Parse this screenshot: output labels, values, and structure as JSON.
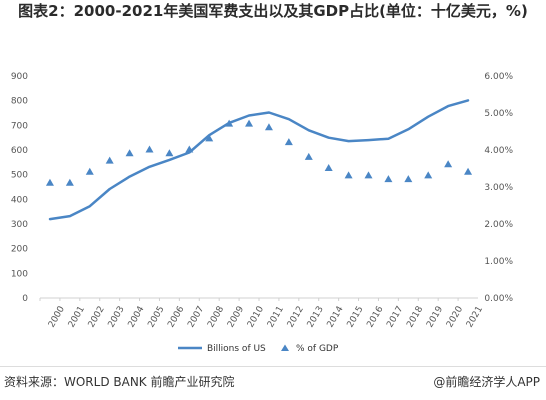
{
  "title": "图表2：2000-2021年美国军费支出以及其GDP占比(单位：十亿美元，%)",
  "source": "资料来源：WORLD BANK 前瞻产业研究院",
  "brand": "@前瞻经济学人APP",
  "chart_data": {
    "type": "line",
    "categories": [
      "2000",
      "2001",
      "2002",
      "2003",
      "2004",
      "2005",
      "2006",
      "2007",
      "2008",
      "2009",
      "2010",
      "2011",
      "2012",
      "2013",
      "2014",
      "2015",
      "2016",
      "2017",
      "2018",
      "2019",
      "2020",
      "2021"
    ],
    "series": [
      {
        "name": "Billions of US",
        "axis": "left",
        "style": "line",
        "color": "#4a86c5",
        "values": [
          320,
          332,
          372,
          442,
          492,
          532,
          560,
          590,
          660,
          710,
          740,
          752,
          725,
          680,
          650,
          636,
          640,
          646,
          684,
          735,
          778,
          801
        ]
      },
      {
        "name": "% of GDP",
        "axis": "right",
        "style": "triangle-marker",
        "color": "#4a86c5",
        "values": [
          3.1,
          3.1,
          3.4,
          3.7,
          3.9,
          4.0,
          3.9,
          4.0,
          4.3,
          4.7,
          4.7,
          4.6,
          4.2,
          3.8,
          3.5,
          3.3,
          3.3,
          3.2,
          3.2,
          3.3,
          3.6,
          3.4
        ]
      }
    ],
    "y_left": {
      "min": 0,
      "max": 900,
      "step": 100,
      "ticks": [
        "0",
        "100",
        "200",
        "300",
        "400",
        "500",
        "600",
        "700",
        "800",
        "900"
      ]
    },
    "y_right": {
      "min": 0,
      "max": 6,
      "step": 1,
      "ticks": [
        "0.00%",
        "1.00%",
        "2.00%",
        "3.00%",
        "4.00%",
        "5.00%",
        "6.00%"
      ]
    },
    "grid": false,
    "legend_position": "bottom",
    "axis_color": "#d0d0d0",
    "tick_color": "#555555"
  }
}
